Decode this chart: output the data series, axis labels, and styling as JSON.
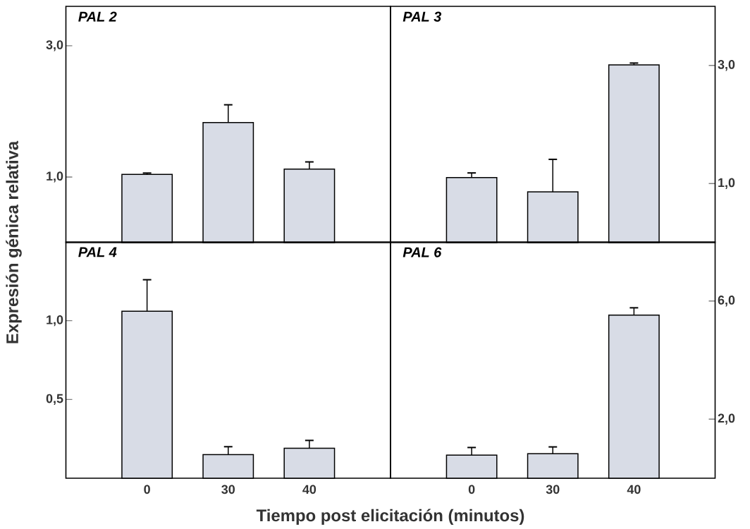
{
  "chart_data": [
    {
      "type": "bar",
      "title": "PAL 2",
      "ylabel": "Expresión génica relativa",
      "categories": [
        "0",
        "30",
        "40"
      ],
      "values": [
        1.04,
        1.83,
        1.12
      ],
      "errors": [
        0.02,
        0.27,
        0.11
      ],
      "color": "#d8dce6",
      "ylim": [
        0,
        3.6
      ],
      "yticks": [
        {
          "value": 1,
          "label": "1,0"
        },
        {
          "value": 3,
          "label": "3,0"
        }
      ],
      "tick_labels": "y"
    },
    {
      "type": "bar",
      "title": "PAL 3",
      "categories": [
        "0",
        "30",
        "40"
      ],
      "values": [
        1.1,
        0.86,
        3.01
      ],
      "errors": [
        0.08,
        0.55,
        0.03
      ],
      "color": "#d8dce6",
      "ylim": [
        0,
        4
      ],
      "yticks": [
        {
          "value": 1,
          "label": "1,0"
        },
        {
          "value": 3,
          "label": "3,0"
        }
      ],
      "tick_labels": "y"
    },
    {
      "type": "bar",
      "title": "PAL 4",
      "xlabel": "Tiempo post elicitación (minutos)",
      "categories": [
        "0",
        "30",
        "40"
      ],
      "values": [
        1.06,
        0.15,
        0.19
      ],
      "errors": [
        0.2,
        0.05,
        0.05
      ],
      "color": "#d8dce6",
      "ylim": [
        0,
        1.5
      ],
      "yticks": [
        {
          "value": 0.5,
          "label": "0,5"
        },
        {
          "value": 1,
          "label": "1,0"
        }
      ]
    },
    {
      "type": "bar",
      "title": "PAL 6",
      "categories": [
        "0",
        "30",
        "40"
      ],
      "values": [
        0.78,
        0.83,
        5.52
      ],
      "errors": [
        0.26,
        0.23,
        0.25
      ],
      "color": "#d8dce6",
      "ylim": [
        0,
        8
      ],
      "yticks": [
        {
          "value": 2,
          "label": "2,0"
        },
        {
          "value": 6,
          "label": "6,0"
        }
      ]
    }
  ]
}
